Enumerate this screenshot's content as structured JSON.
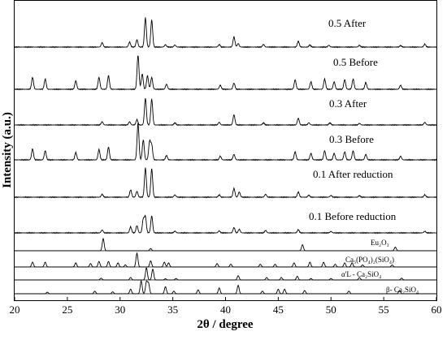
{
  "chart_data": {
    "type": "line",
    "xlabel": "2θ / degree",
    "ylabel": "Intensity (a.u.)",
    "xlim": [
      20,
      60
    ],
    "x_ticks": [
      "20",
      "25",
      "30",
      "35",
      "40",
      "45",
      "50",
      "55",
      "60"
    ],
    "grid": false,
    "legend": "none",
    "series": [
      {
        "name": "0.5 After",
        "color": "#000000",
        "peaks": [
          [
            28.3,
            0.15
          ],
          [
            30.9,
            0.17
          ],
          [
            31.6,
            0.25
          ],
          [
            32.4,
            1.0
          ],
          [
            33.0,
            0.93
          ],
          [
            34.3,
            0.08
          ],
          [
            35.2,
            0.07
          ],
          [
            39.4,
            0.09
          ],
          [
            40.8,
            0.35
          ],
          [
            41.2,
            0.12
          ],
          [
            43.6,
            0.09
          ],
          [
            46.9,
            0.2
          ],
          [
            48.0,
            0.07
          ],
          [
            49.8,
            0.06
          ],
          [
            52.7,
            0.06
          ],
          [
            56.6,
            0.05
          ],
          [
            58.9,
            0.1
          ]
        ]
      },
      {
        "name": "0.5 Before",
        "color": "#000000",
        "peaks": [
          [
            21.7,
            0.35
          ],
          [
            22.9,
            0.3
          ],
          [
            25.8,
            0.25
          ],
          [
            28.0,
            0.35
          ],
          [
            28.9,
            0.4
          ],
          [
            31.7,
            1.0
          ],
          [
            32.1,
            0.45
          ],
          [
            32.6,
            0.4
          ],
          [
            33.0,
            0.35
          ],
          [
            34.4,
            0.15
          ],
          [
            39.5,
            0.12
          ],
          [
            40.8,
            0.18
          ],
          [
            46.6,
            0.28
          ],
          [
            48.1,
            0.22
          ],
          [
            49.4,
            0.3
          ],
          [
            50.3,
            0.22
          ],
          [
            51.3,
            0.28
          ],
          [
            52.1,
            0.3
          ],
          [
            53.3,
            0.2
          ],
          [
            56.6,
            0.12
          ]
        ]
      },
      {
        "name": "0.3 After",
        "color": "#000000",
        "peaks": [
          [
            28.3,
            0.12
          ],
          [
            30.9,
            0.12
          ],
          [
            31.6,
            0.2
          ],
          [
            32.4,
            1.0
          ],
          [
            33.0,
            0.97
          ],
          [
            35.2,
            0.08
          ],
          [
            39.4,
            0.1
          ],
          [
            40.8,
            0.38
          ],
          [
            43.6,
            0.08
          ],
          [
            46.9,
            0.25
          ],
          [
            47.9,
            0.08
          ],
          [
            49.9,
            0.08
          ],
          [
            52.7,
            0.06
          ],
          [
            58.9,
            0.1
          ]
        ]
      },
      {
        "name": "0.3 Before",
        "color": "#000000",
        "peaks": [
          [
            21.7,
            0.3
          ],
          [
            22.9,
            0.25
          ],
          [
            25.8,
            0.2
          ],
          [
            28.0,
            0.28
          ],
          [
            28.9,
            0.35
          ],
          [
            31.7,
            1.0
          ],
          [
            32.2,
            0.55
          ],
          [
            32.8,
            0.5
          ],
          [
            33.0,
            0.4
          ],
          [
            34.4,
            0.12
          ],
          [
            39.5,
            0.1
          ],
          [
            40.8,
            0.15
          ],
          [
            46.6,
            0.22
          ],
          [
            48.1,
            0.18
          ],
          [
            49.4,
            0.25
          ],
          [
            50.3,
            0.18
          ],
          [
            51.3,
            0.22
          ],
          [
            52.1,
            0.25
          ],
          [
            53.3,
            0.15
          ],
          [
            56.6,
            0.1
          ]
        ]
      },
      {
        "name": "0.1 After reduction",
        "color": "#000000",
        "peaks": [
          [
            28.3,
            0.1
          ],
          [
            31.0,
            0.25
          ],
          [
            31.6,
            0.2
          ],
          [
            32.4,
            1.0
          ],
          [
            33.0,
            0.97
          ],
          [
            35.2,
            0.08
          ],
          [
            39.4,
            0.08
          ],
          [
            40.8,
            0.3
          ],
          [
            41.3,
            0.18
          ],
          [
            43.8,
            0.1
          ],
          [
            46.9,
            0.18
          ],
          [
            47.9,
            0.07
          ],
          [
            50.0,
            0.06
          ],
          [
            52.7,
            0.05
          ],
          [
            58.9,
            0.08
          ]
        ]
      },
      {
        "name": "0.1 Before reduction",
        "color": "#000000",
        "peaks": [
          [
            28.3,
            0.12
          ],
          [
            31.0,
            0.25
          ],
          [
            31.6,
            0.3
          ],
          [
            32.2,
            0.55
          ],
          [
            32.4,
            0.65
          ],
          [
            33.0,
            0.7
          ],
          [
            35.2,
            0.07
          ],
          [
            39.4,
            0.08
          ],
          [
            40.8,
            0.22
          ],
          [
            41.3,
            0.15
          ],
          [
            43.8,
            0.1
          ],
          [
            46.9,
            0.13
          ],
          [
            50.0,
            0.06
          ],
          [
            58.9,
            0.07
          ]
        ]
      },
      {
        "name": "Eu₂O₃",
        "color": "#000000",
        "peaks": [
          [
            28.4,
            1.0
          ],
          [
            32.9,
            0.18
          ],
          [
            47.3,
            0.5
          ],
          [
            56.1,
            0.3
          ]
        ]
      },
      {
        "name": "Ca₅(PO₄)₂(SiO₄)",
        "color": "#000000",
        "peaks": [
          [
            21.7,
            0.35
          ],
          [
            22.9,
            0.35
          ],
          [
            25.8,
            0.3
          ],
          [
            27.2,
            0.25
          ],
          [
            28.0,
            0.4
          ],
          [
            28.9,
            0.4
          ],
          [
            29.8,
            0.3
          ],
          [
            30.5,
            0.15
          ],
          [
            31.6,
            1.0
          ],
          [
            32.9,
            0.45
          ],
          [
            34.2,
            0.35
          ],
          [
            34.6,
            0.3
          ],
          [
            39.2,
            0.25
          ],
          [
            40.5,
            0.2
          ],
          [
            43.3,
            0.2
          ],
          [
            44.7,
            0.2
          ],
          [
            46.5,
            0.3
          ],
          [
            48.0,
            0.35
          ],
          [
            49.3,
            0.35
          ],
          [
            50.4,
            0.2
          ],
          [
            51.3,
            0.3
          ],
          [
            52.0,
            0.3
          ],
          [
            53.0,
            0.15
          ],
          [
            55.8,
            0.15
          ]
        ]
      },
      {
        "name": "α'L - Ca₂SiO₄",
        "color": "#000000",
        "peaks": [
          [
            28.2,
            0.15
          ],
          [
            31.0,
            0.2
          ],
          [
            32.5,
            1.0
          ],
          [
            33.1,
            0.9
          ],
          [
            34.3,
            0.1
          ],
          [
            35.3,
            0.12
          ],
          [
            41.2,
            0.35
          ],
          [
            43.9,
            0.2
          ],
          [
            45.3,
            0.2
          ],
          [
            46.8,
            0.3
          ],
          [
            48.1,
            0.12
          ],
          [
            50.0,
            0.12
          ],
          [
            52.7,
            0.2
          ],
          [
            56.7,
            0.15
          ]
        ]
      },
      {
        "name": "β- Ca₂SiO₄",
        "color": "#000000",
        "peaks": [
          [
            23.1,
            0.12
          ],
          [
            27.6,
            0.2
          ],
          [
            29.3,
            0.15
          ],
          [
            31.0,
            0.35
          ],
          [
            32.0,
            1.0
          ],
          [
            32.5,
            0.9
          ],
          [
            32.7,
            0.8
          ],
          [
            34.3,
            0.55
          ],
          [
            35.1,
            0.2
          ],
          [
            37.4,
            0.3
          ],
          [
            39.4,
            0.45
          ],
          [
            41.2,
            0.65
          ],
          [
            43.5,
            0.2
          ],
          [
            45.0,
            0.35
          ],
          [
            45.6,
            0.35
          ],
          [
            47.5,
            0.25
          ],
          [
            51.7,
            0.2
          ],
          [
            56.5,
            0.25
          ]
        ]
      }
    ]
  }
}
